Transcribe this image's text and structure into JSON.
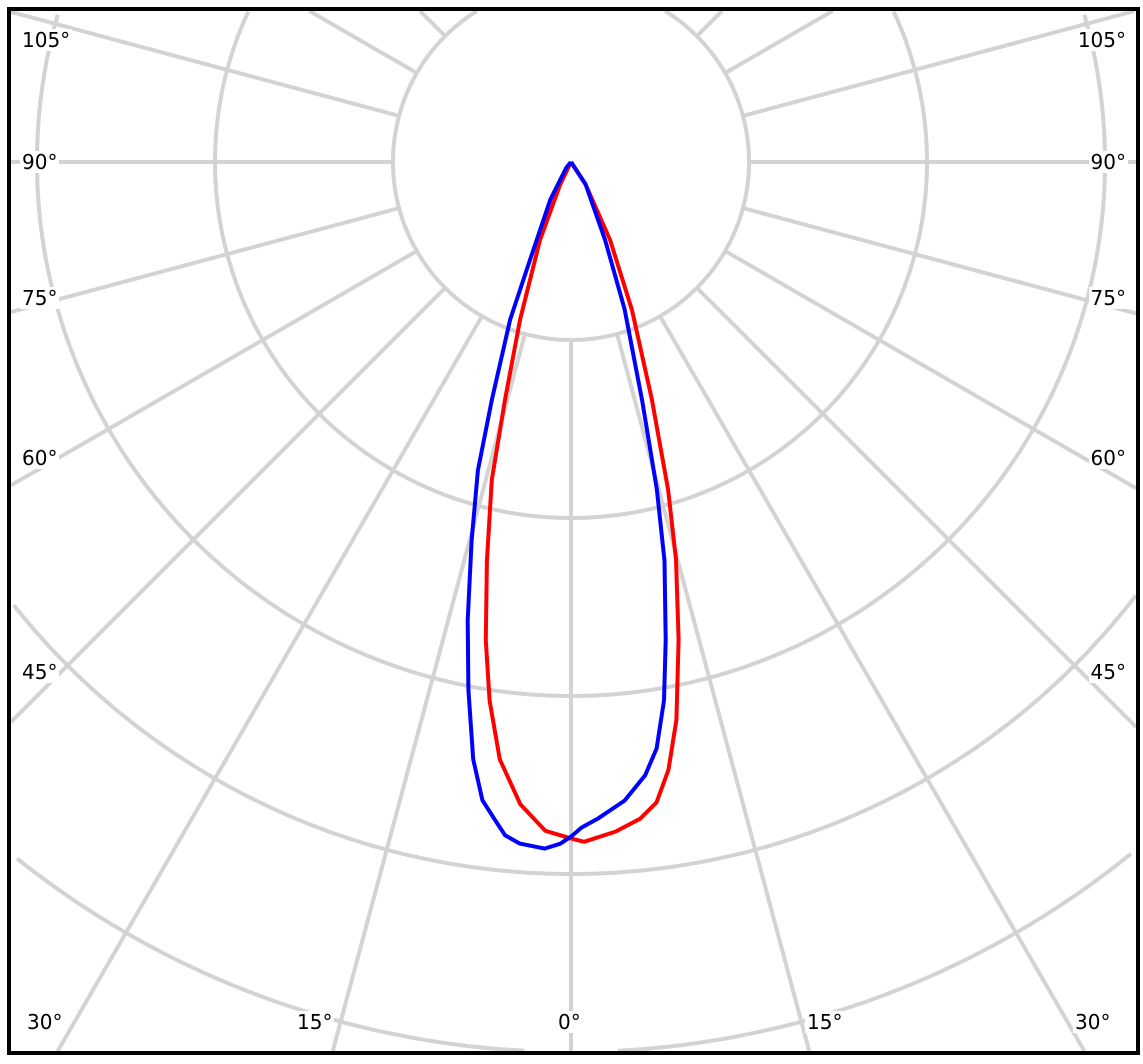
{
  "chart_data": {
    "type": "polar-line",
    "grid": true,
    "angle_zero_direction": "down",
    "angle_tick_labels_left": [
      "105°",
      "90°",
      "75°",
      "60°",
      "45°"
    ],
    "angle_tick_labels_right": [
      "105°",
      "90°",
      "75°",
      "60°",
      "45°"
    ],
    "angle_tick_labels_bottom": [
      "30°",
      "15°",
      "0°",
      "15°",
      "30°"
    ],
    "radial_grid_step": 1,
    "radial_rings": [
      1,
      2,
      3,
      4,
      5,
      6
    ],
    "angular_grid_step_deg": 15,
    "series": [
      {
        "color": "#ff0000",
        "points": [
          [
            -25.6,
            0.14
          ],
          [
            -21.7,
            0.47
          ],
          [
            -17.9,
            0.93
          ],
          [
            -15.5,
            1.39
          ],
          [
            -14.0,
            1.84
          ],
          [
            -11.9,
            2.29
          ],
          [
            -10.1,
            2.73
          ],
          [
            -8.6,
            3.06
          ],
          [
            -6.8,
            3.38
          ],
          [
            -4.5,
            3.62
          ],
          [
            -2.2,
            3.76
          ],
          [
            0,
            3.8
          ],
          [
            1.1,
            3.82
          ],
          [
            3.8,
            3.77
          ],
          [
            6.0,
            3.71
          ],
          [
            7.6,
            3.63
          ],
          [
            9.1,
            3.46
          ],
          [
            10.7,
            3.19
          ],
          [
            12.7,
            2.75
          ],
          [
            14.8,
            2.31
          ],
          [
            16.5,
            1.92
          ],
          [
            18.8,
            1.41
          ],
          [
            22.4,
            0.9
          ],
          [
            26.6,
            0.49
          ],
          [
            33.1,
            0.15
          ],
          [
            180,
            0
          ]
        ]
      },
      {
        "color": "#0000ff",
        "points": [
          [
            -39.8,
            0.04
          ],
          [
            -28.9,
            0.24
          ],
          [
            -22.7,
            0.6
          ],
          [
            -21.1,
            0.95
          ],
          [
            -18.4,
            1.41
          ],
          [
            -16.8,
            1.81
          ],
          [
            -14.7,
            2.2
          ],
          [
            -12.7,
            2.64
          ],
          [
            -11.0,
            3.02
          ],
          [
            -9.3,
            3.4
          ],
          [
            -7.9,
            3.62
          ],
          [
            -6.6,
            3.72
          ],
          [
            -5.6,
            3.8
          ],
          [
            -4.3,
            3.84
          ],
          [
            -2.2,
            3.86
          ],
          [
            -0.9,
            3.83
          ],
          [
            0,
            3.79
          ],
          [
            0.9,
            3.74
          ],
          [
            2.4,
            3.69
          ],
          [
            4.8,
            3.6
          ],
          [
            6.9,
            3.47
          ],
          [
            8.3,
            3.33
          ],
          [
            9.8,
            3.07
          ],
          [
            11.2,
            2.74
          ],
          [
            13.2,
            2.3
          ],
          [
            14.7,
            1.9
          ],
          [
            16.6,
            1.4
          ],
          [
            20.0,
            0.88
          ],
          [
            23.6,
            0.48
          ],
          [
            33.1,
            0.15
          ],
          [
            180,
            0
          ]
        ]
      }
    ]
  }
}
